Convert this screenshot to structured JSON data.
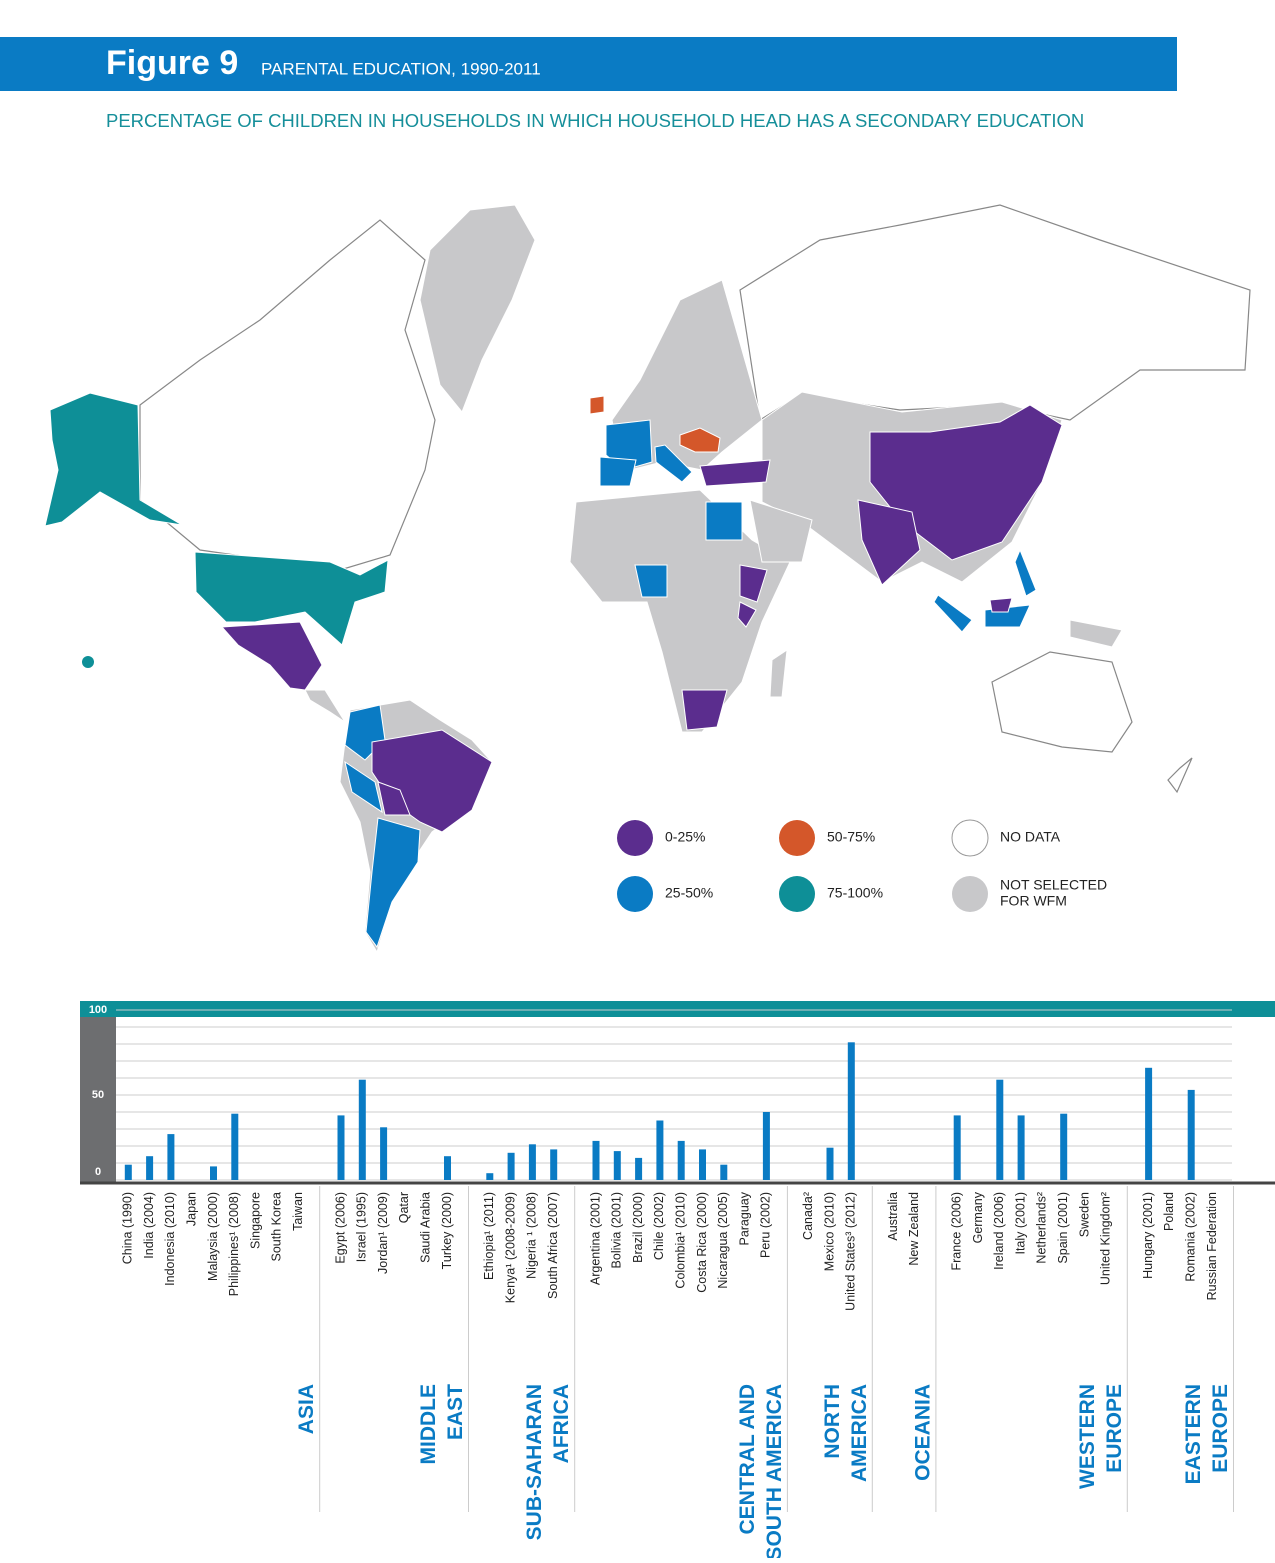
{
  "header": {
    "figure": "Figure 9",
    "title": "PARENTAL EDUCATION, 1990-2011",
    "subtitle": "PERCENTAGE OF CHILDREN IN HOUSEHOLDS IN WHICH HOUSEHOLD HEAD HAS A SECONDARY EDUCATION"
  },
  "map": {
    "legend": [
      {
        "label": [
          "0-25%"
        ],
        "color": "#5b2d8e"
      },
      {
        "label": [
          "50-75%"
        ],
        "color": "#d4572a"
      },
      {
        "label": [
          "NO DATA"
        ],
        "color": "#ffffff"
      },
      {
        "label": [
          "25-50%"
        ],
        "color": "#0a7bc4"
      },
      {
        "label": [
          "75-100%"
        ],
        "color": "#0e8f97"
      },
      {
        "label": [
          "NOT SELECTED",
          "FOR WFM"
        ],
        "color": "#c8c8ca"
      }
    ]
  },
  "chart_data": {
    "type": "bar",
    "color": "#0a7bc4",
    "ylim": [
      0,
      100
    ],
    "yticks": [
      0,
      50,
      100
    ],
    "yminor": [
      10,
      20,
      30,
      40,
      60,
      70,
      80,
      90
    ],
    "grid": true,
    "groups": [
      {
        "name": [
          "ASIA"
        ],
        "categories": [
          "China (1990)",
          "India (2004)",
          "Indonesia (2010)",
          "Japan",
          "Malaysia (2000)",
          "Philippines¹ (2008)",
          "Singapore",
          "South Korea",
          "Taiwan"
        ],
        "values": [
          9,
          14,
          27,
          null,
          8,
          39,
          null,
          null,
          null
        ]
      },
      {
        "name": [
          "MIDDLE",
          "EAST"
        ],
        "categories": [
          "Egypt (2006)",
          "Israel (1995)",
          "Jordan¹ (2009)",
          "Qatar",
          "Saudi Arabia",
          "Turkey (2000)"
        ],
        "values": [
          38,
          59,
          31,
          null,
          null,
          14
        ]
      },
      {
        "name": [
          "SUB-SAHARAN",
          "AFRICA"
        ],
        "categories": [
          "Ethiopia¹ (2011)",
          "Kenya¹ (2008-2009)",
          "Nigeria ¹ (2008)",
          "South Africa (2007)"
        ],
        "values": [
          4,
          16,
          21,
          18
        ]
      },
      {
        "name": [
          "CENTRAL AND",
          "SOUTH AMERICA"
        ],
        "categories": [
          "Argentina (2001)",
          "Bolivia (2001)",
          "Brazil (2000)",
          "Chile (2002)",
          "Colombia¹ (2010)",
          "Costa Rica (2000)",
          "Nicaragua (2005)",
          "Paraguay",
          "Peru (2002)"
        ],
        "values": [
          23,
          17,
          13,
          35,
          23,
          18,
          9,
          null,
          40
        ]
      },
      {
        "name": [
          "NORTH",
          "AMERICA"
        ],
        "categories": [
          "Canada²",
          "Mexico (2010)",
          "United States³ (2012)"
        ],
        "values": [
          null,
          19,
          81
        ]
      },
      {
        "name": [
          "OCEANIA"
        ],
        "categories": [
          "Australia",
          "New Zealand"
        ],
        "values": [
          null,
          null
        ]
      },
      {
        "name": [
          "WESTERN",
          "EUROPE"
        ],
        "categories": [
          "France (2006)",
          "Germany",
          "Ireland (2006)",
          "Italy (2001)",
          "Netherlands²",
          "Spain (2001)",
          "Sweden",
          "United Kingdom²"
        ],
        "values": [
          38,
          null,
          59,
          38,
          null,
          39,
          null,
          null
        ]
      },
      {
        "name": [
          "EASTERN",
          "EUROPE"
        ],
        "categories": [
          "Hungary (2001)",
          "Poland",
          "Romania (2002)",
          "Russian Federation"
        ],
        "values": [
          66,
          null,
          53,
          null
        ]
      }
    ]
  }
}
